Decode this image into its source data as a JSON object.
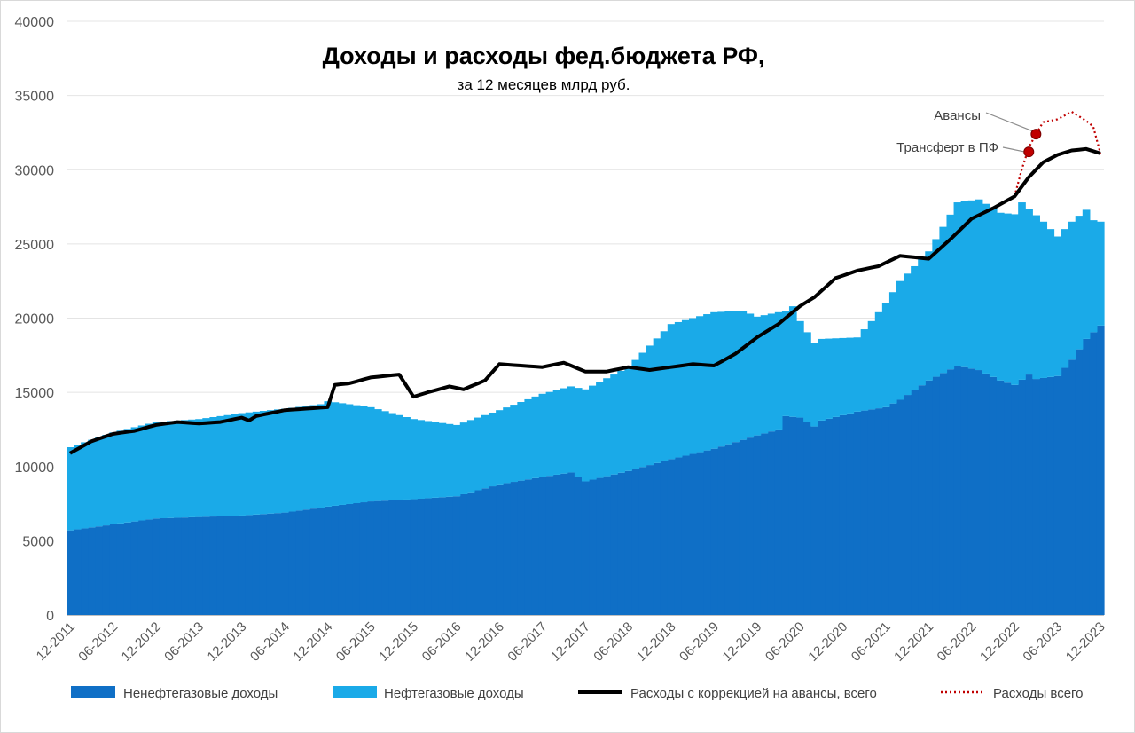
{
  "chart_data": {
    "type": "bar",
    "title": "Доходы и расходы фед.бюджета РФ,",
    "subtitle": "за 12 месяцев млрд руб.",
    "xlabel": "",
    "ylabel": "",
    "ylim": [
      0,
      40000
    ],
    "yticks": [
      "0",
      "5000",
      "10000",
      "15000",
      "20000",
      "25000",
      "30000",
      "35000",
      "40000"
    ],
    "x_tick_labels": [
      "12-2011",
      "06-2012",
      "12-2012",
      "06-2013",
      "12-2013",
      "06-2014",
      "12-2014",
      "06-2015",
      "12-2015",
      "06-2016",
      "12-2016",
      "06-2017",
      "12-2017",
      "06-2018",
      "12-2018",
      "06-2019",
      "12-2019",
      "06-2020",
      "12-2020",
      "06-2021",
      "12-2021",
      "06-2022",
      "12-2022",
      "06-2023",
      "12-2023"
    ],
    "months": 145,
    "series": [
      {
        "name": "Ненефтегазовые доходы",
        "kind": "stacked-bar",
        "color": "#0f6fc6",
        "anchors": [
          [
            0,
            5700
          ],
          [
            6,
            6100
          ],
          [
            12,
            6500
          ],
          [
            18,
            6600
          ],
          [
            24,
            6700
          ],
          [
            30,
            6900
          ],
          [
            36,
            7300
          ],
          [
            42,
            7650
          ],
          [
            48,
            7800
          ],
          [
            54,
            8000
          ],
          [
            60,
            8800
          ],
          [
            66,
            9300
          ],
          [
            70,
            9600
          ],
          [
            72,
            9000
          ],
          [
            78,
            9700
          ],
          [
            84,
            10500
          ],
          [
            90,
            11200
          ],
          [
            96,
            12100
          ],
          [
            99,
            12500
          ],
          [
            100,
            13400
          ],
          [
            102,
            13300
          ],
          [
            104,
            12700
          ],
          [
            105,
            13100
          ],
          [
            110,
            13700
          ],
          [
            114,
            14000
          ],
          [
            116,
            14500
          ],
          [
            120,
            15800
          ],
          [
            124,
            16800
          ],
          [
            127,
            16500
          ],
          [
            130,
            15800
          ],
          [
            132,
            15500
          ],
          [
            134,
            16200
          ],
          [
            135,
            15900
          ],
          [
            138,
            16100
          ],
          [
            140,
            17200
          ],
          [
            142,
            18600
          ],
          [
            144,
            19500
          ]
        ]
      },
      {
        "name": "Нефтегазовые доходы",
        "kind": "stacked-bar-total",
        "color": "#1aaae8",
        "anchors": [
          [
            0,
            11300
          ],
          [
            6,
            12300
          ],
          [
            12,
            13000
          ],
          [
            18,
            13200
          ],
          [
            24,
            13600
          ],
          [
            30,
            13900
          ],
          [
            35,
            14200
          ],
          [
            36,
            14400
          ],
          [
            42,
            14000
          ],
          [
            48,
            13200
          ],
          [
            54,
            12800
          ],
          [
            60,
            13800
          ],
          [
            66,
            14900
          ],
          [
            70,
            15400
          ],
          [
            72,
            15200
          ],
          [
            78,
            16700
          ],
          [
            84,
            19600
          ],
          [
            90,
            20400
          ],
          [
            94,
            20500
          ],
          [
            96,
            20100
          ],
          [
            100,
            20500
          ],
          [
            101,
            20800
          ],
          [
            102,
            19800
          ],
          [
            104,
            18300
          ],
          [
            105,
            18600
          ],
          [
            110,
            18700
          ],
          [
            112,
            19800
          ],
          [
            114,
            21000
          ],
          [
            116,
            22500
          ],
          [
            120,
            24500
          ],
          [
            124,
            27800
          ],
          [
            127,
            28000
          ],
          [
            130,
            27100
          ],
          [
            132,
            27000
          ],
          [
            133,
            27800
          ],
          [
            136,
            26500
          ],
          [
            138,
            25500
          ],
          [
            140,
            26500
          ],
          [
            142,
            27300
          ],
          [
            143,
            26600
          ],
          [
            144,
            26500
          ]
        ]
      },
      {
        "name": "Расходы с коррекцией на авансы, всего",
        "kind": "line",
        "color": "#000000",
        "anchors": [
          [
            0,
            10900
          ],
          [
            3,
            11700
          ],
          [
            6,
            12200
          ],
          [
            9,
            12400
          ],
          [
            12,
            12800
          ],
          [
            15,
            13000
          ],
          [
            18,
            12900
          ],
          [
            21,
            13000
          ],
          [
            24,
            13300
          ],
          [
            25,
            13100
          ],
          [
            26,
            13400
          ],
          [
            30,
            13800
          ],
          [
            33,
            13900
          ],
          [
            36,
            14000
          ],
          [
            37,
            15500
          ],
          [
            39,
            15600
          ],
          [
            42,
            16000
          ],
          [
            44,
            16100
          ],
          [
            46,
            16200
          ],
          [
            48,
            14700
          ],
          [
            50,
            15000
          ],
          [
            53,
            15400
          ],
          [
            55,
            15200
          ],
          [
            58,
            15800
          ],
          [
            60,
            16900
          ],
          [
            63,
            16800
          ],
          [
            66,
            16700
          ],
          [
            69,
            17000
          ],
          [
            72,
            16400
          ],
          [
            75,
            16400
          ],
          [
            78,
            16700
          ],
          [
            81,
            16500
          ],
          [
            84,
            16700
          ],
          [
            87,
            16900
          ],
          [
            90,
            16800
          ],
          [
            93,
            17600
          ],
          [
            96,
            18700
          ],
          [
            99,
            19600
          ],
          [
            102,
            20800
          ],
          [
            104,
            21400
          ],
          [
            107,
            22700
          ],
          [
            110,
            23200
          ],
          [
            113,
            23500
          ],
          [
            116,
            24200
          ],
          [
            118,
            24100
          ],
          [
            120,
            24000
          ],
          [
            123,
            25300
          ],
          [
            126,
            26700
          ],
          [
            129,
            27400
          ],
          [
            132,
            28200
          ],
          [
            134,
            29500
          ],
          [
            136,
            30500
          ],
          [
            138,
            31000
          ],
          [
            140,
            31300
          ],
          [
            142,
            31400
          ],
          [
            144,
            31100
          ]
        ]
      },
      {
        "name": "Расходы всего",
        "kind": "dotted-line",
        "color": "#c00000",
        "anchors": [
          [
            132,
            28200
          ],
          [
            133,
            30000
          ],
          [
            134,
            31500
          ],
          [
            135,
            32400
          ],
          [
            136,
            33200
          ],
          [
            138,
            33400
          ],
          [
            140,
            33900
          ],
          [
            142,
            33300
          ],
          [
            143,
            32900
          ],
          [
            144,
            31100
          ]
        ]
      }
    ],
    "annotations": [
      {
        "text": "Авансы",
        "month": 135,
        "value": 32400
      },
      {
        "text": "Трансферт в ПФ",
        "month": 134,
        "value": 31200
      }
    ],
    "legend_position": "bottom"
  }
}
